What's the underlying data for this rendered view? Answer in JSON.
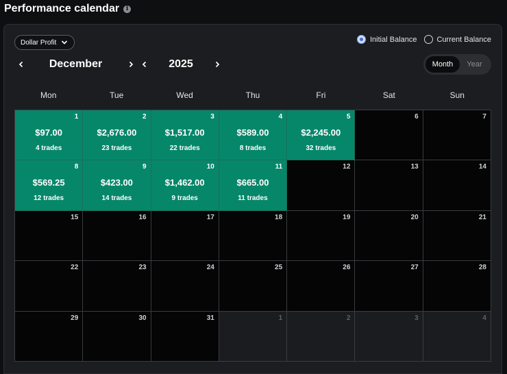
{
  "header": {
    "title": "Performance calendar",
    "info_icon": "i"
  },
  "controls": {
    "metric_select": "Dollar Profit",
    "balance_options": [
      {
        "label": "Initial Balance",
        "checked": true
      },
      {
        "label": "Current Balance",
        "checked": false
      }
    ],
    "month": "December",
    "year": "2025",
    "view_toggle": {
      "month": "Month",
      "year": "Year",
      "active": "Month"
    }
  },
  "weekdays": [
    "Mon",
    "Tue",
    "Wed",
    "Thu",
    "Fri",
    "Sat",
    "Sun"
  ],
  "days": [
    {
      "day": "1",
      "amount": "$97.00",
      "trades": "4 trades",
      "state": "profit"
    },
    {
      "day": "2",
      "amount": "$2,676.00",
      "trades": "23 trades",
      "state": "profit"
    },
    {
      "day": "3",
      "amount": "$1,517.00",
      "trades": "22 trades",
      "state": "profit"
    },
    {
      "day": "4",
      "amount": "$589.00",
      "trades": "8 trades",
      "state": "profit"
    },
    {
      "day": "5",
      "amount": "$2,245.00",
      "trades": "32 trades",
      "state": "profit"
    },
    {
      "day": "6",
      "state": "empty"
    },
    {
      "day": "7",
      "state": "empty"
    },
    {
      "day": "8",
      "amount": "$569.25",
      "trades": "12 trades",
      "state": "profit"
    },
    {
      "day": "9",
      "amount": "$423.00",
      "trades": "14 trades",
      "state": "profit"
    },
    {
      "day": "10",
      "amount": "$1,462.00",
      "trades": "9 trades",
      "state": "profit"
    },
    {
      "day": "11",
      "amount": "$665.00",
      "trades": "11 trades",
      "state": "profit"
    },
    {
      "day": "12",
      "state": "empty"
    },
    {
      "day": "13",
      "state": "empty"
    },
    {
      "day": "14",
      "state": "empty"
    },
    {
      "day": "15",
      "state": "empty"
    },
    {
      "day": "16",
      "state": "empty"
    },
    {
      "day": "17",
      "state": "empty"
    },
    {
      "day": "18",
      "state": "empty"
    },
    {
      "day": "19",
      "state": "empty"
    },
    {
      "day": "20",
      "state": "empty"
    },
    {
      "day": "21",
      "state": "empty"
    },
    {
      "day": "22",
      "state": "empty"
    },
    {
      "day": "23",
      "state": "empty"
    },
    {
      "day": "24",
      "state": "empty"
    },
    {
      "day": "25",
      "state": "empty"
    },
    {
      "day": "26",
      "state": "empty"
    },
    {
      "day": "27",
      "state": "empty"
    },
    {
      "day": "28",
      "state": "empty"
    },
    {
      "day": "29",
      "state": "empty"
    },
    {
      "day": "30",
      "state": "empty"
    },
    {
      "day": "31",
      "state": "empty"
    },
    {
      "day": "1",
      "state": "other"
    },
    {
      "day": "2",
      "state": "other"
    },
    {
      "day": "3",
      "state": "other"
    },
    {
      "day": "4",
      "state": "other"
    }
  ],
  "colors": {
    "profit": "#06876a",
    "empty": "#050505",
    "other": "#1b1c1f",
    "radio_accent": "#3f6fd6"
  }
}
